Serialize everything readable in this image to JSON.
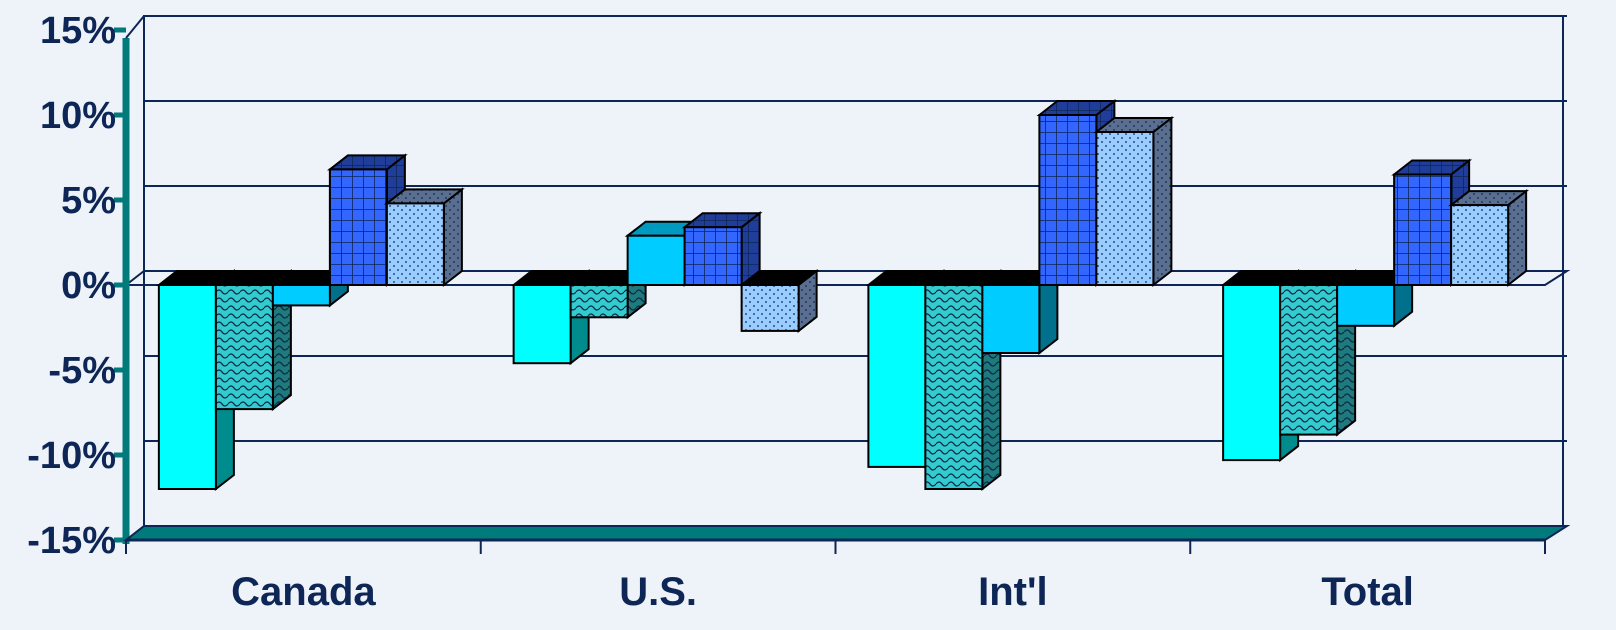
{
  "chart_data": {
    "type": "bar",
    "categories": [
      "Canada",
      "U.S.",
      "Int'l",
      "Total"
    ],
    "ylim": [
      -15,
      15
    ],
    "yticks": [
      15,
      10,
      5,
      0,
      -5,
      -10,
      -15
    ],
    "ytick_labels": [
      "15%",
      "10%",
      "5%",
      "0%",
      "-5%",
      "-10%",
      "-15%"
    ],
    "grid": true,
    "legend": "none",
    "series": [
      {
        "values": [
          -12.0,
          -4.6,
          -10.7,
          -10.3
        ],
        "color": "#00ffff",
        "pattern": "solid"
      },
      {
        "values": [
          -7.3,
          -1.9,
          -12.0,
          -8.8
        ],
        "color": "#33cccc",
        "pattern": "wave"
      },
      {
        "values": [
          -1.2,
          2.9,
          -4.0,
          -2.4
        ],
        "color": "#00ccff",
        "pattern": "solid"
      },
      {
        "values": [
          6.8,
          3.4,
          10.0,
          6.5
        ],
        "color": "#3366ff",
        "pattern": "grid"
      },
      {
        "values": [
          4.8,
          -2.7,
          9.0,
          4.7
        ],
        "color": "#99ccff",
        "pattern": "dots"
      }
    ],
    "colors": {
      "axis_accent": "#007a7a",
      "grid_line": "#0d2656",
      "background": "#eef3f9",
      "text": "#0d2656"
    }
  }
}
